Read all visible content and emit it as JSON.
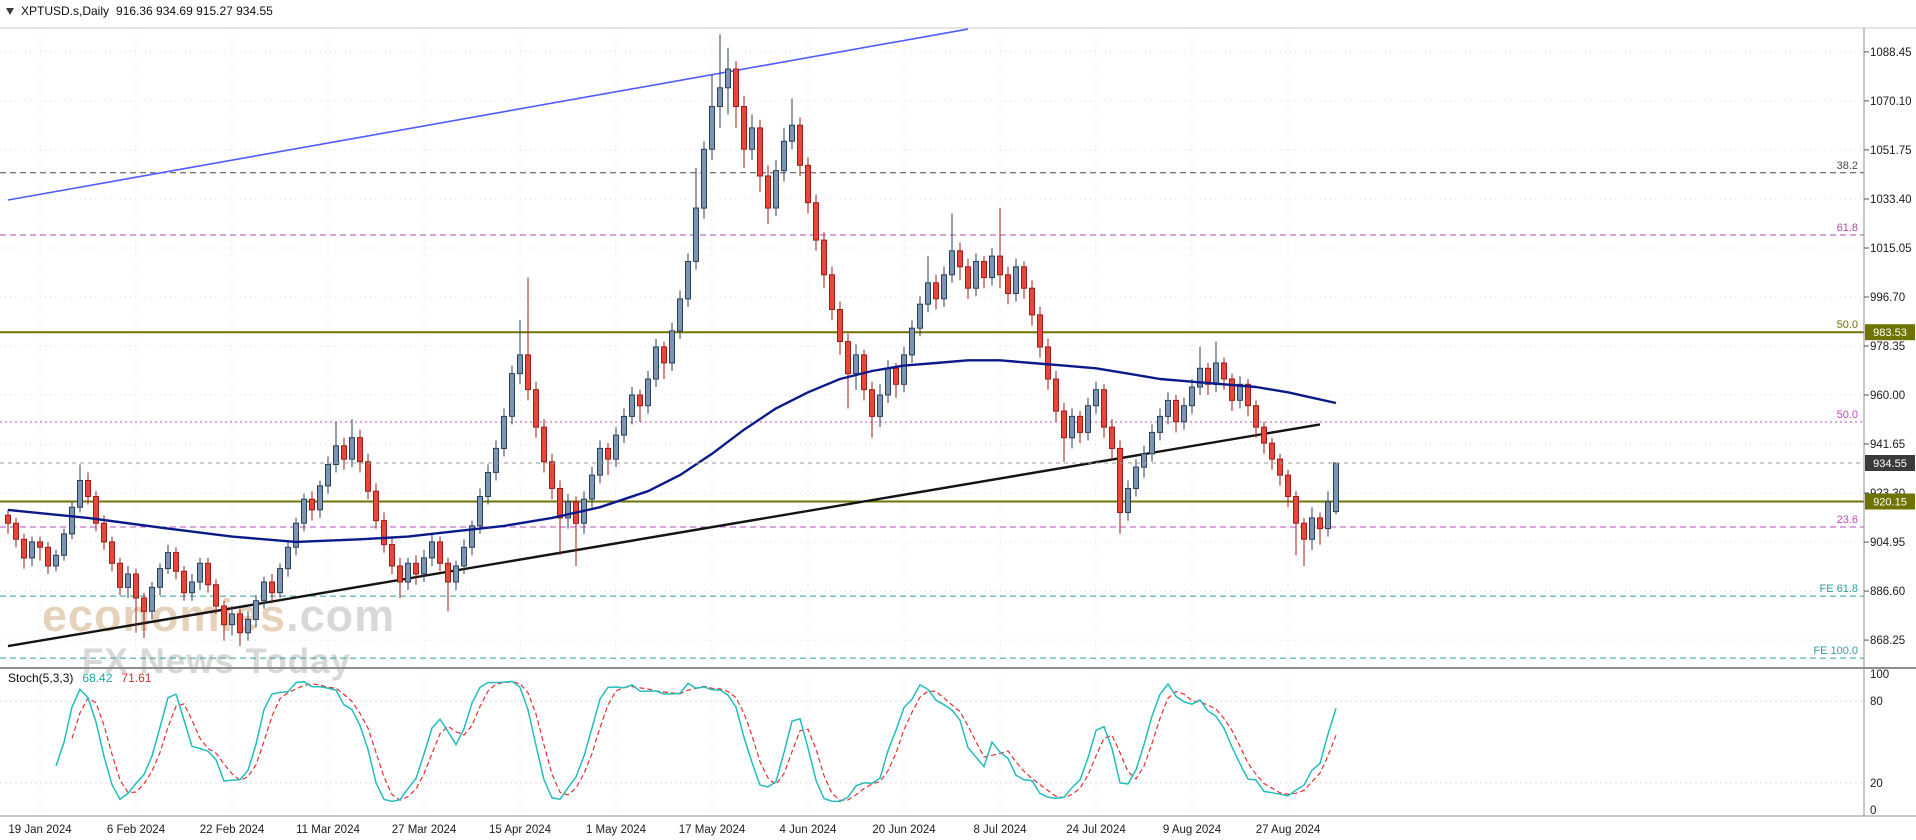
{
  "header": {
    "symbol_period": "XPTUSD.s,Daily",
    "ohlc": "916.36 934.69 915.27 934.55"
  },
  "watermark": {
    "brand": "economies",
    "tld": ".com",
    "subtitle": "FX News Today"
  },
  "indicator": {
    "name": "Stoch(5,3,3)",
    "value1": "68.42",
    "value2": "71.61"
  },
  "colors": {
    "up_fill": "#7b93b5",
    "up_stroke": "#2e4057",
    "down_fill": "#e8463c",
    "down_stroke": "#9c1f16",
    "ma": "#0a1a8a",
    "trend_blue": "#4f5bff",
    "trend_black": "#141414",
    "olive": "#6f7400",
    "badge_current_bg": "#3a3a3a",
    "badge_text": "#ffffff",
    "stoch_k": "#22bdbd",
    "stoch_d": "#e03131",
    "grid": "#dcdcdc",
    "separator": "#8f8f8f",
    "axis_text": "#1c1c1c",
    "current_line": "#9a9a9a"
  },
  "chart_data": {
    "type": "candlestick",
    "symbol": "XPTUSD.s",
    "timeframe": "Daily",
    "price_pane": {
      "y_range": [
        857.8,
        1097.4
      ],
      "y_axis_ticks": [
        1088.45,
        1070.1,
        1051.75,
        1033.4,
        1015.05,
        996.7,
        978.35,
        960.0,
        941.65,
        923.3,
        904.95,
        886.6,
        868.25
      ],
      "time_ticks": {
        "labels": [
          "19 Jan 2024",
          "6 Feb 2024",
          "22 Feb 2024",
          "11 Mar 2024",
          "27 Mar 2024",
          "15 Apr 2024",
          "1 May 2024",
          "17 May 2024",
          "4 Jun 2024",
          "20 Jun 2024",
          "8 Jul 2024",
          "24 Jul 2024",
          "9 Aug 2024",
          "27 Aug 2024"
        ],
        "candle_indices": [
          4,
          16,
          28,
          40,
          52,
          64,
          76,
          88,
          100,
          112,
          124,
          136,
          148,
          160
        ]
      },
      "candles": [
        [
          915,
          917,
          908,
          912
        ],
        [
          912,
          914,
          903,
          906
        ],
        [
          906,
          908,
          895,
          899
        ],
        [
          899,
          907,
          896,
          905
        ],
        [
          905,
          907,
          898,
          903
        ],
        [
          903,
          905,
          893,
          896
        ],
        [
          896,
          902,
          894,
          900
        ],
        [
          900,
          910,
          898,
          908
        ],
        [
          908,
          920,
          906,
          918
        ],
        [
          918,
          934,
          916,
          928
        ],
        [
          928,
          931,
          919,
          922
        ],
        [
          922,
          924,
          909,
          912
        ],
        [
          912,
          915,
          902,
          905
        ],
        [
          905,
          907,
          894,
          897
        ],
        [
          897,
          899,
          885,
          888
        ],
        [
          888,
          896,
          884,
          893
        ],
        [
          893,
          895,
          871,
          884
        ],
        [
          884,
          886,
          869,
          879
        ],
        [
          879,
          890,
          876,
          888
        ],
        [
          888,
          897,
          885,
          895
        ],
        [
          895,
          904,
          893,
          901
        ],
        [
          901,
          903,
          891,
          894
        ],
        [
          894,
          896,
          883,
          886
        ],
        [
          886,
          893,
          883,
          890
        ],
        [
          890,
          899,
          887,
          897
        ],
        [
          897,
          899,
          886,
          889
        ],
        [
          889,
          891,
          878,
          881
        ],
        [
          881,
          883,
          868,
          874
        ],
        [
          874,
          881,
          870,
          878
        ],
        [
          878,
          880,
          866,
          871
        ],
        [
          871,
          879,
          868,
          876
        ],
        [
          876,
          885,
          873,
          883
        ],
        [
          883,
          892,
          880,
          890
        ],
        [
          890,
          893,
          882,
          886
        ],
        [
          886,
          897,
          884,
          895
        ],
        [
          895,
          905,
          892,
          903
        ],
        [
          903,
          914,
          900,
          912
        ],
        [
          912,
          923,
          909,
          921
        ],
        [
          921,
          924,
          913,
          917
        ],
        [
          917,
          928,
          914,
          926
        ],
        [
          926,
          937,
          923,
          934
        ],
        [
          934,
          950,
          931,
          941
        ],
        [
          941,
          944,
          932,
          936
        ],
        [
          936,
          951,
          933,
          944
        ],
        [
          944,
          947,
          931,
          935
        ],
        [
          935,
          938,
          921,
          924
        ],
        [
          924,
          927,
          910,
          913
        ],
        [
          913,
          916,
          901,
          904
        ],
        [
          904,
          907,
          893,
          896
        ],
        [
          896,
          899,
          884,
          890
        ],
        [
          890,
          899,
          887,
          897
        ],
        [
          897,
          900,
          889,
          893
        ],
        [
          893,
          902,
          890,
          899
        ],
        [
          899,
          908,
          896,
          905
        ],
        [
          905,
          907,
          894,
          897
        ],
        [
          897,
          899,
          879,
          890
        ],
        [
          890,
          898,
          887,
          896
        ],
        [
          896,
          906,
          893,
          903
        ],
        [
          903,
          913,
          900,
          911
        ],
        [
          911,
          925,
          908,
          922
        ],
        [
          922,
          934,
          919,
          931
        ],
        [
          931,
          943,
          928,
          940
        ],
        [
          940,
          955,
          937,
          952
        ],
        [
          952,
          971,
          949,
          968
        ],
        [
          968,
          988,
          964,
          975
        ],
        [
          975,
          1004,
          958,
          962
        ],
        [
          962,
          965,
          944,
          948
        ],
        [
          948,
          951,
          931,
          935
        ],
        [
          935,
          938,
          921,
          925
        ],
        [
          925,
          928,
          900,
          914
        ],
        [
          914,
          923,
          910,
          920
        ],
        [
          920,
          922,
          896,
          912
        ],
        [
          912,
          924,
          908,
          921
        ],
        [
          921,
          933,
          918,
          930
        ],
        [
          930,
          943,
          927,
          940
        ],
        [
          940,
          942,
          930,
          936
        ],
        [
          936,
          948,
          933,
          945
        ],
        [
          945,
          955,
          942,
          952
        ],
        [
          952,
          963,
          949,
          960
        ],
        [
          960,
          962,
          950,
          956
        ],
        [
          956,
          969,
          953,
          966
        ],
        [
          966,
          981,
          963,
          978
        ],
        [
          978,
          980,
          966,
          972
        ],
        [
          972,
          987,
          969,
          984
        ],
        [
          984,
          999,
          981,
          996
        ],
        [
          996,
          1013,
          993,
          1010
        ],
        [
          1010,
          1045,
          1007,
          1030
        ],
        [
          1030,
          1055,
          1026,
          1052
        ],
        [
          1052,
          1080,
          1048,
          1068
        ],
        [
          1068,
          1095,
          1060,
          1075
        ],
        [
          1075,
          1090,
          1065,
          1082
        ],
        [
          1082,
          1085,
          1060,
          1068
        ],
        [
          1068,
          1072,
          1045,
          1052
        ],
        [
          1052,
          1065,
          1048,
          1060
        ],
        [
          1060,
          1063,
          1036,
          1042
        ],
        [
          1042,
          1046,
          1024,
          1030
        ],
        [
          1030,
          1048,
          1027,
          1044
        ],
        [
          1044,
          1060,
          1040,
          1055
        ],
        [
          1055,
          1071,
          1052,
          1061
        ],
        [
          1061,
          1064,
          1042,
          1046
        ],
        [
          1046,
          1049,
          1028,
          1032
        ],
        [
          1032,
          1035,
          1014,
          1018
        ],
        [
          1018,
          1021,
          1000,
          1005
        ],
        [
          1005,
          1008,
          988,
          992
        ],
        [
          992,
          995,
          975,
          980
        ],
        [
          980,
          983,
          955,
          968
        ],
        [
          968,
          979,
          962,
          975
        ],
        [
          975,
          977,
          958,
          962
        ],
        [
          962,
          965,
          944,
          952
        ],
        [
          952,
          964,
          948,
          960
        ],
        [
          960,
          973,
          957,
          970
        ],
        [
          970,
          972,
          959,
          964
        ],
        [
          964,
          978,
          961,
          975
        ],
        [
          975,
          988,
          972,
          985
        ],
        [
          985,
          997,
          982,
          994
        ],
        [
          994,
          1012,
          991,
          1002
        ],
        [
          1002,
          1005,
          992,
          996
        ],
        [
          996,
          1008,
          993,
          1005
        ],
        [
          1005,
          1028,
          1002,
          1014
        ],
        [
          1014,
          1017,
          1003,
          1008
        ],
        [
          1008,
          1011,
          996,
          1000
        ],
        [
          1000,
          1013,
          997,
          1010
        ],
        [
          1010,
          1012,
          1000,
          1004
        ],
        [
          1004,
          1015,
          1001,
          1012
        ],
        [
          1012,
          1030,
          1000,
          1005
        ],
        [
          1005,
          1008,
          994,
          998
        ],
        [
          998,
          1011,
          995,
          1008
        ],
        [
          1008,
          1010,
          996,
          1000
        ],
        [
          1000,
          1003,
          986,
          990
        ],
        [
          990,
          993,
          974,
          978
        ],
        [
          978,
          981,
          962,
          966
        ],
        [
          966,
          969,
          950,
          954
        ],
        [
          954,
          957,
          935,
          944
        ],
        [
          944,
          955,
          940,
          952
        ],
        [
          952,
          954,
          942,
          946
        ],
        [
          946,
          959,
          943,
          956
        ],
        [
          956,
          965,
          953,
          962
        ],
        [
          962,
          964,
          944,
          948
        ],
        [
          948,
          951,
          936,
          940
        ],
        [
          940,
          943,
          908,
          916
        ],
        [
          916,
          928,
          913,
          925
        ],
        [
          925,
          936,
          922,
          933
        ],
        [
          933,
          941,
          929,
          938
        ],
        [
          938,
          949,
          935,
          946
        ],
        [
          946,
          955,
          943,
          952
        ],
        [
          952,
          961,
          949,
          958
        ],
        [
          958,
          960,
          946,
          950
        ],
        [
          950,
          959,
          947,
          956
        ],
        [
          956,
          966,
          953,
          963
        ],
        [
          963,
          978,
          960,
          970
        ],
        [
          970,
          972,
          960,
          964
        ],
        [
          964,
          980,
          961,
          972
        ],
        [
          972,
          974,
          962,
          966
        ],
        [
          966,
          968,
          954,
          958
        ],
        [
          958,
          967,
          955,
          964
        ],
        [
          964,
          966,
          952,
          956
        ],
        [
          956,
          958,
          944,
          948
        ],
        [
          948,
          950,
          938,
          942
        ],
        [
          942,
          944,
          932,
          936
        ],
        [
          936,
          938,
          926,
          930
        ],
        [
          930,
          932,
          918,
          922
        ],
        [
          922,
          924,
          900,
          912
        ],
        [
          912,
          914,
          896,
          906
        ],
        [
          906,
          918,
          902,
          914
        ],
        [
          914,
          916,
          904,
          910
        ],
        [
          910,
          924,
          907,
          920
        ],
        [
          916.36,
          934.69,
          915.27,
          934.55
        ]
      ],
      "ma_points": [
        [
          0,
          917
        ],
        [
          10,
          914
        ],
        [
          20,
          910
        ],
        [
          28,
          907
        ],
        [
          36,
          905
        ],
        [
          44,
          906
        ],
        [
          50,
          907
        ],
        [
          56,
          909
        ],
        [
          62,
          911
        ],
        [
          68,
          914
        ],
        [
          74,
          918
        ],
        [
          80,
          924
        ],
        [
          84,
          930
        ],
        [
          88,
          938
        ],
        [
          92,
          947
        ],
        [
          96,
          955
        ],
        [
          100,
          961
        ],
        [
          104,
          966
        ],
        [
          108,
          969
        ],
        [
          112,
          971
        ],
        [
          116,
          972
        ],
        [
          120,
          973
        ],
        [
          124,
          973
        ],
        [
          128,
          972
        ],
        [
          132,
          971
        ],
        [
          136,
          970
        ],
        [
          140,
          968
        ],
        [
          144,
          966
        ],
        [
          148,
          965
        ],
        [
          152,
          964
        ],
        [
          156,
          963
        ],
        [
          160,
          961
        ],
        [
          163,
          959
        ],
        [
          166,
          957
        ]
      ],
      "trendlines": [
        {
          "name": "resistance",
          "color_key": "trend_blue",
          "i1": 0,
          "p1": 1033,
          "i2": 120,
          "p2": 1097
        },
        {
          "name": "support",
          "color_key": "trend_black",
          "i1": 0,
          "p1": 866,
          "i2": 164,
          "p2": 949
        }
      ],
      "h_levels": [
        {
          "price": 983.53,
          "label": "983.53"
        },
        {
          "price": 920.15,
          "label": "920.15"
        }
      ],
      "fib_levels": [
        {
          "label": "38.2",
          "price": 1043.2,
          "color": "#4a4a4a",
          "dash": "6 4",
          "label_only": false
        },
        {
          "label": "61.8",
          "price": 1019.9,
          "color": "#b04ab0",
          "dash": "6 4",
          "label_only": false
        },
        {
          "label": "50.0",
          "price": 983.53,
          "color": "#6f7400",
          "dash": "",
          "label_only": true
        },
        {
          "label": "50.0",
          "price": 949.9,
          "color": "#c24ac2",
          "dash": "2 3",
          "label_only": false
        },
        {
          "label": "23.6",
          "price": 910.6,
          "color": "#c24ac2",
          "dash": "6 4",
          "label_only": false
        },
        {
          "label": "FE 61.8",
          "price": 884.7,
          "color": "#2f9e9e",
          "dash": "6 4",
          "label_only": false
        },
        {
          "label": "FE 100.0",
          "price": 861.5,
          "color": "#2f9e9e",
          "dash": "6 4",
          "label_only": false
        }
      ],
      "current_price": {
        "label": "934.55",
        "price": 934.55
      }
    },
    "stoch_pane": {
      "label": "Stoch(5,3,3)",
      "params": [
        5,
        3,
        3
      ],
      "range": [
        0,
        100
      ],
      "y_axis_ticks": [
        100,
        80,
        20,
        0
      ],
      "level_lines": [
        80,
        20
      ]
    }
  }
}
